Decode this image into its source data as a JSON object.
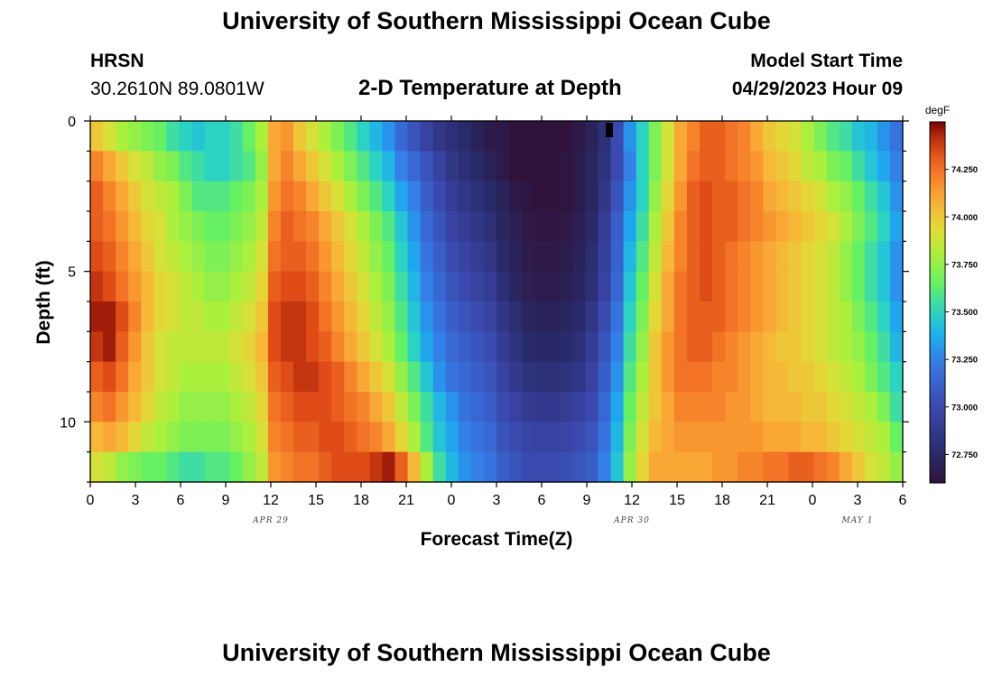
{
  "header": {
    "title": "University of Southern Mississippi Ocean Cube",
    "station": "HRSN",
    "coords": "30.2610N  89.0801W",
    "plot_title": "2-D Temperature at Depth",
    "model_label": "Model Start Time",
    "model_time": "04/29/2023 Hour 09"
  },
  "footer": {
    "title": "University of Southern Mississippi Ocean Cube"
  },
  "chart_data": {
    "type": "heatmap",
    "title": "2-D Temperature at Depth",
    "xlabel": "Forecast Time(Z)",
    "ylabel": "Depth (ft)",
    "x_range": [
      0,
      54
    ],
    "x_ticks": [
      0,
      3,
      6,
      9,
      12,
      15,
      18,
      21,
      24,
      27,
      30,
      33,
      36,
      39,
      42,
      45,
      48,
      51,
      54
    ],
    "x_tick_labels": [
      "0",
      "3",
      "6",
      "9",
      "12",
      "15",
      "18",
      "21",
      "0",
      "3",
      "6",
      "9",
      "12",
      "15",
      "18",
      "21",
      "0",
      "3",
      "6"
    ],
    "date_labels": [
      {
        "text": "APR 29",
        "hour": 12
      },
      {
        "text": "APR 30",
        "hour": 36
      },
      {
        "text": "MAY 1",
        "hour": 51
      }
    ],
    "y_range": [
      0,
      12
    ],
    "y_ticks": [
      0,
      5,
      10
    ],
    "y_tick_labels": [
      "0",
      "5",
      "10"
    ],
    "depth_levels": [
      0.5,
      1.5,
      2.5,
      3.5,
      4.5,
      5.5,
      6.5,
      7.5,
      8.5,
      9.5,
      10.5,
      11.5
    ],
    "units": "degF",
    "color_range": [
      72.6,
      74.5
    ],
    "colorbar_ticks": [
      72.75,
      73.0,
      73.25,
      73.5,
      73.75,
      74.0,
      74.25
    ],
    "colorbar_tick_labels": [
      "72.750",
      "73.000",
      "73.250",
      "73.500",
      "73.750",
      "74.000",
      "74.250"
    ],
    "values": [
      [
        74.0,
        73.9,
        73.8,
        73.75,
        73.7,
        73.65,
        73.55,
        73.5,
        73.45,
        73.5,
        73.5,
        73.55,
        73.65,
        73.8,
        74.1,
        74.15,
        74.0,
        73.9,
        73.8,
        73.7,
        73.6,
        73.5,
        73.4,
        73.3,
        73.15,
        73.05,
        72.95,
        72.85,
        72.8,
        72.75,
        72.7,
        72.65,
        72.65,
        72.6,
        72.6,
        72.6,
        72.6,
        72.6,
        72.65,
        72.7,
        72.8,
        73.0,
        73.3,
        73.5,
        73.7,
        73.9,
        74.1,
        74.2,
        74.3,
        74.3,
        74.25,
        74.2,
        74.1,
        74.0,
        73.95,
        73.9,
        73.8,
        73.7,
        73.6,
        73.55,
        73.45,
        73.4,
        73.3,
        73.2
      ],
      [
        74.2,
        74.1,
        74.0,
        73.9,
        73.85,
        73.75,
        73.7,
        73.6,
        73.55,
        73.5,
        73.5,
        73.55,
        73.6,
        73.75,
        74.1,
        74.2,
        74.1,
        74.0,
        73.9,
        73.8,
        73.7,
        73.6,
        73.5,
        73.4,
        73.25,
        73.15,
        73.05,
        72.95,
        72.85,
        72.8,
        72.75,
        72.7,
        72.65,
        72.6,
        72.6,
        72.6,
        72.6,
        72.62,
        72.66,
        72.72,
        72.82,
        73.0,
        73.25,
        73.5,
        73.7,
        73.9,
        74.1,
        74.25,
        74.3,
        74.3,
        74.25,
        74.2,
        74.15,
        74.05,
        74.0,
        73.95,
        73.85,
        73.8,
        73.7,
        73.65,
        73.55,
        73.45,
        73.35,
        73.25
      ],
      [
        74.3,
        74.2,
        74.1,
        74.0,
        73.9,
        73.85,
        73.8,
        73.7,
        73.6,
        73.6,
        73.6,
        73.65,
        73.7,
        73.8,
        74.15,
        74.25,
        74.2,
        74.1,
        74.0,
        73.9,
        73.8,
        73.7,
        73.6,
        73.5,
        73.35,
        73.25,
        73.1,
        73.0,
        72.9,
        72.85,
        72.8,
        72.75,
        72.7,
        72.65,
        72.62,
        72.6,
        72.6,
        72.62,
        72.66,
        72.72,
        72.85,
        73.05,
        73.3,
        73.5,
        73.75,
        73.95,
        74.15,
        74.3,
        74.35,
        74.3,
        74.3,
        74.25,
        74.2,
        74.1,
        74.05,
        74.0,
        73.95,
        73.9,
        73.8,
        73.75,
        73.65,
        73.55,
        73.45,
        73.3
      ],
      [
        74.3,
        74.25,
        74.15,
        74.05,
        73.95,
        73.9,
        73.8,
        73.75,
        73.7,
        73.65,
        73.65,
        73.7,
        73.75,
        73.85,
        74.2,
        74.3,
        74.25,
        74.2,
        74.1,
        74.0,
        73.9,
        73.8,
        73.7,
        73.6,
        73.45,
        73.3,
        73.15,
        73.05,
        72.95,
        72.9,
        72.85,
        72.8,
        72.72,
        72.68,
        72.64,
        72.62,
        72.62,
        72.64,
        72.68,
        72.75,
        72.9,
        73.1,
        73.35,
        73.55,
        73.8,
        74.0,
        74.2,
        74.3,
        74.35,
        74.3,
        74.3,
        74.25,
        74.2,
        74.15,
        74.1,
        74.05,
        74.0,
        73.95,
        73.9,
        73.8,
        73.7,
        73.6,
        73.5,
        73.35
      ],
      [
        74.35,
        74.3,
        74.2,
        74.1,
        74.0,
        73.9,
        73.85,
        73.8,
        73.75,
        73.7,
        73.7,
        73.75,
        73.8,
        73.9,
        74.25,
        74.3,
        74.3,
        74.25,
        74.15,
        74.05,
        73.95,
        73.85,
        73.75,
        73.65,
        73.5,
        73.35,
        73.2,
        73.1,
        73.0,
        72.95,
        72.9,
        72.85,
        72.75,
        72.7,
        72.66,
        72.64,
        72.64,
        72.66,
        72.7,
        72.78,
        72.92,
        73.12,
        73.4,
        73.6,
        73.85,
        74.05,
        74.2,
        74.3,
        74.35,
        74.3,
        74.25,
        74.2,
        74.15,
        74.1,
        74.05,
        74.0,
        73.95,
        73.9,
        73.85,
        73.75,
        73.65,
        73.55,
        73.45,
        73.3
      ],
      [
        74.4,
        74.35,
        74.25,
        74.15,
        74.05,
        73.95,
        73.9,
        73.85,
        73.8,
        73.75,
        73.75,
        73.8,
        73.85,
        73.95,
        74.3,
        74.35,
        74.35,
        74.3,
        74.2,
        74.1,
        74.0,
        73.9,
        73.8,
        73.7,
        73.55,
        73.4,
        73.25,
        73.15,
        73.05,
        73.0,
        72.95,
        72.9,
        72.8,
        72.72,
        72.68,
        72.66,
        72.66,
        72.68,
        72.72,
        72.8,
        72.95,
        73.15,
        73.45,
        73.65,
        73.9,
        74.1,
        74.25,
        74.3,
        74.35,
        74.3,
        74.25,
        74.2,
        74.15,
        74.1,
        74.05,
        74.0,
        73.95,
        73.9,
        73.85,
        73.75,
        73.65,
        73.55,
        73.45,
        73.3
      ],
      [
        74.45,
        74.45,
        74.35,
        74.2,
        74.05,
        73.95,
        73.9,
        73.85,
        73.85,
        73.8,
        73.8,
        73.85,
        73.9,
        74.0,
        74.35,
        74.4,
        74.4,
        74.35,
        74.25,
        74.15,
        74.05,
        73.95,
        73.85,
        73.75,
        73.6,
        73.45,
        73.3,
        73.2,
        73.1,
        73.05,
        73.0,
        72.95,
        72.85,
        72.78,
        72.72,
        72.7,
        72.7,
        72.72,
        72.76,
        72.85,
        73.0,
        73.2,
        73.5,
        73.7,
        73.95,
        74.1,
        74.25,
        74.3,
        74.3,
        74.3,
        74.25,
        74.2,
        74.15,
        74.1,
        74.05,
        74.0,
        73.95,
        73.9,
        73.85,
        73.8,
        73.7,
        73.6,
        73.5,
        73.35
      ],
      [
        74.4,
        74.45,
        74.3,
        74.15,
        74.0,
        73.9,
        73.85,
        73.85,
        73.85,
        73.85,
        73.85,
        73.9,
        73.95,
        74.05,
        74.35,
        74.4,
        74.4,
        74.35,
        74.3,
        74.2,
        74.1,
        74.0,
        73.9,
        73.8,
        73.65,
        73.5,
        73.35,
        73.25,
        73.15,
        73.1,
        73.05,
        73.0,
        72.9,
        72.82,
        72.76,
        72.74,
        72.74,
        72.76,
        72.8,
        72.9,
        73.05,
        73.25,
        73.55,
        73.75,
        74.0,
        74.15,
        74.25,
        74.3,
        74.3,
        74.25,
        74.2,
        74.15,
        74.1,
        74.05,
        74.0,
        74.0,
        73.95,
        73.9,
        73.85,
        73.8,
        73.75,
        73.65,
        73.55,
        73.4
      ],
      [
        74.3,
        74.35,
        74.25,
        74.1,
        74.0,
        73.9,
        73.85,
        73.8,
        73.8,
        73.8,
        73.8,
        73.85,
        73.9,
        74.0,
        74.3,
        74.35,
        74.4,
        74.4,
        74.35,
        74.3,
        74.2,
        74.1,
        74.0,
        73.9,
        73.75,
        73.6,
        73.45,
        73.3,
        73.2,
        73.15,
        73.1,
        73.05,
        72.95,
        72.88,
        72.82,
        72.8,
        72.8,
        72.82,
        72.86,
        72.95,
        73.1,
        73.3,
        73.6,
        73.8,
        74.0,
        74.15,
        74.25,
        74.25,
        74.25,
        74.2,
        74.2,
        74.15,
        74.1,
        74.05,
        74.05,
        74.0,
        74.0,
        73.95,
        73.9,
        73.85,
        73.8,
        73.7,
        73.6,
        73.5
      ],
      [
        74.2,
        74.25,
        74.15,
        74.05,
        73.95,
        73.85,
        73.8,
        73.75,
        73.75,
        73.75,
        73.75,
        73.8,
        73.85,
        73.95,
        74.25,
        74.3,
        74.35,
        74.35,
        74.35,
        74.3,
        74.25,
        74.2,
        74.1,
        74.0,
        73.85,
        73.7,
        73.55,
        73.4,
        73.3,
        73.2,
        73.15,
        73.1,
        73.0,
        72.95,
        72.9,
        72.88,
        72.88,
        72.9,
        72.94,
        73.0,
        73.15,
        73.35,
        73.65,
        73.85,
        74.0,
        74.1,
        74.2,
        74.2,
        74.2,
        74.2,
        74.15,
        74.15,
        74.1,
        74.05,
        74.05,
        74.05,
        74.0,
        74.0,
        73.95,
        73.9,
        73.85,
        73.8,
        73.7,
        73.55
      ],
      [
        74.05,
        74.1,
        74.05,
        73.95,
        73.85,
        73.8,
        73.75,
        73.7,
        73.7,
        73.7,
        73.7,
        73.75,
        73.8,
        73.9,
        74.2,
        74.25,
        74.3,
        74.3,
        74.35,
        74.35,
        74.3,
        74.25,
        74.2,
        74.1,
        73.95,
        73.8,
        73.6,
        73.45,
        73.35,
        73.25,
        73.2,
        73.15,
        73.05,
        73.0,
        72.96,
        72.95,
        72.95,
        72.96,
        73.0,
        73.05,
        73.2,
        73.4,
        73.7,
        73.9,
        74.05,
        74.1,
        74.15,
        74.15,
        74.15,
        74.15,
        74.15,
        74.15,
        74.15,
        74.1,
        74.1,
        74.1,
        74.05,
        74.05,
        74.0,
        73.95,
        73.9,
        73.85,
        73.8,
        73.65
      ],
      [
        73.9,
        73.85,
        73.75,
        73.7,
        73.65,
        73.65,
        73.6,
        73.55,
        73.55,
        73.6,
        73.6,
        73.65,
        73.75,
        73.85,
        74.15,
        74.2,
        74.25,
        74.25,
        74.3,
        74.35,
        74.35,
        74.35,
        74.4,
        74.45,
        74.3,
        74.05,
        73.8,
        73.55,
        73.4,
        73.3,
        73.25,
        73.2,
        73.1,
        73.05,
        73.0,
        73.0,
        73.0,
        73.02,
        73.06,
        73.1,
        73.25,
        73.45,
        73.75,
        73.95,
        74.1,
        74.1,
        74.1,
        74.1,
        74.1,
        74.15,
        74.15,
        74.2,
        74.2,
        74.25,
        74.25,
        74.3,
        74.3,
        74.25,
        74.2,
        74.1,
        74.0,
        73.9,
        73.85,
        73.75
      ]
    ]
  }
}
